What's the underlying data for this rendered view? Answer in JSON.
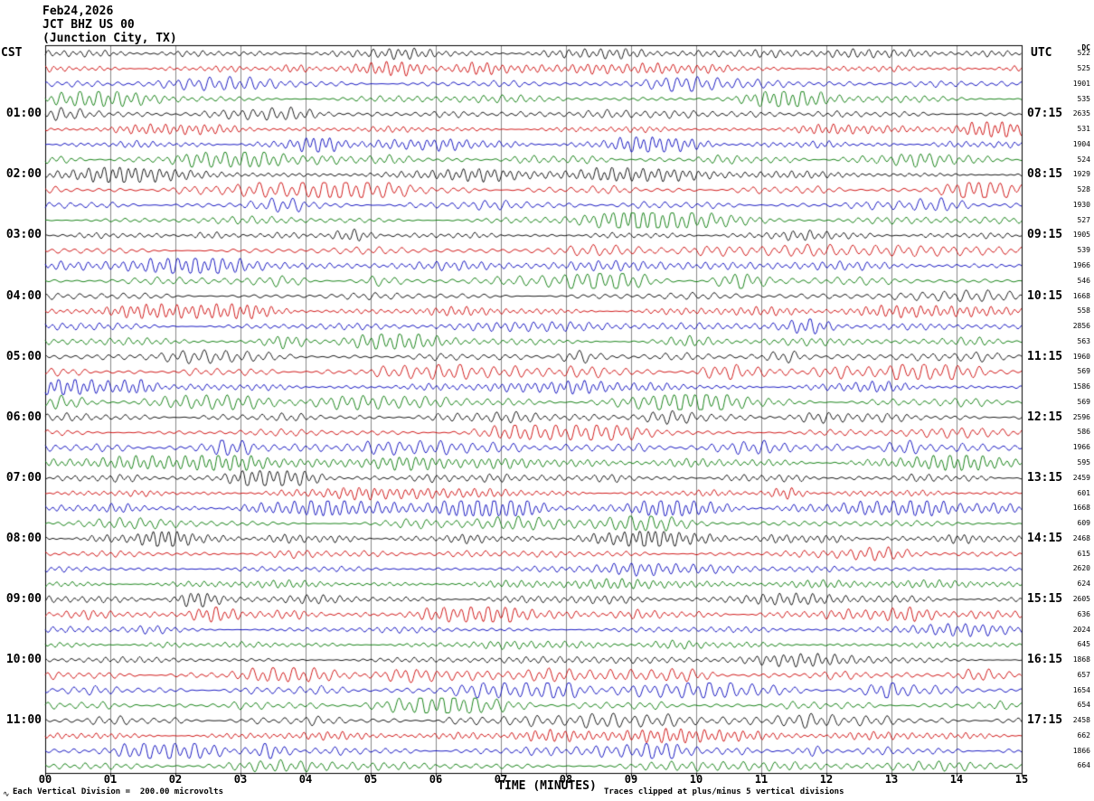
{
  "title": {
    "line1": "Feb24,2026",
    "line2": "JCT BHZ US 00",
    "line3": "(Junction City, TX)"
  },
  "left_axis": {
    "label": "CST",
    "times": [
      "01:00",
      "02:00",
      "03:00",
      "04:00",
      "05:00",
      "06:00",
      "07:00",
      "08:00",
      "09:00",
      "10:00",
      "11:00"
    ]
  },
  "right_axis": {
    "label": "UTC",
    "header": "DC",
    "times": [
      "07:15",
      "08:15",
      "09:15",
      "10:15",
      "11:15",
      "12:15",
      "13:15",
      "14:15",
      "15:15",
      "16:15",
      "17:15"
    ]
  },
  "trace_values": [
    "522",
    "525",
    "1901",
    "535",
    "2635",
    "531",
    "1904",
    "524",
    "1929",
    "528",
    "1930",
    "527",
    "1905",
    "539",
    "1966",
    "546",
    "1668",
    "558",
    "2856",
    "563",
    "1960",
    "569",
    "1586",
    "569",
    "2596",
    "586",
    "1966",
    "595",
    "2459",
    "601",
    "1668",
    "609",
    "2468",
    "615",
    "2620",
    "624",
    "2605",
    "636",
    "2024",
    "645",
    "1868",
    "657",
    "1654",
    "654",
    "2458",
    "662",
    "1866",
    "664"
  ],
  "x_axis": {
    "label": "TIME (MINUTES)",
    "ticks": [
      "00",
      "01",
      "02",
      "03",
      "04",
      "05",
      "06",
      "07",
      "08",
      "09",
      "10",
      "11",
      "12",
      "13",
      "14",
      "15"
    ]
  },
  "footer": {
    "left": "Each Vertical Division =  200.00 microvolts",
    "right": "Traces clipped at plus/minus 5 vertical divisions",
    "corner_mark": "∿"
  },
  "colors": {
    "trace_cycle": [
      "#000000",
      "#cc0000",
      "#0000bb",
      "#007700"
    ],
    "grid": "#8a8a8a",
    "border": "#000000"
  },
  "chart_data": {
    "type": "line",
    "variant": "helicorder-seismogram",
    "station": "JCT BHZ US 00",
    "location": "(Junction City, TX)",
    "date": "Feb24,2026",
    "xlabel": "TIME (MINUTES)",
    "x_ticks": [
      "00",
      "01",
      "02",
      "03",
      "04",
      "05",
      "06",
      "07",
      "08",
      "09",
      "10",
      "11",
      "12",
      "13",
      "14",
      "15"
    ],
    "x_range_minutes": [
      0,
      15
    ],
    "num_traces": 48,
    "traces_per_hour": 4,
    "minutes_per_trace": 15,
    "left_time_labels_cst": [
      "01:00",
      "02:00",
      "03:00",
      "04:00",
      "05:00",
      "06:00",
      "07:00",
      "08:00",
      "09:00",
      "10:00",
      "11:00"
    ],
    "right_time_labels_utc": [
      "07:15",
      "08:15",
      "09:15",
      "10:15",
      "11:15",
      "12:15",
      "13:15",
      "14:15",
      "15:15",
      "16:15",
      "17:15"
    ],
    "per_trace_dc_values": [
      "522",
      "525",
      "1901",
      "535",
      "2635",
      "531",
      "1904",
      "524",
      "1929",
      "528",
      "1930",
      "527",
      "1905",
      "539",
      "1966",
      "546",
      "1668",
      "558",
      "2856",
      "563",
      "1960",
      "569",
      "1586",
      "569",
      "2596",
      "586",
      "1966",
      "595",
      "2459",
      "601",
      "1668",
      "609",
      "2468",
      "615",
      "2620",
      "624",
      "2605",
      "636",
      "2024",
      "645",
      "1868",
      "657",
      "1654",
      "654",
      "2458",
      "662",
      "1866",
      "664"
    ],
    "amplitude_scale": "Each Vertical Division =  200.00 microvolts",
    "clipping": "Traces clipped at plus/minus 5 vertical divisions",
    "color_cycle": [
      "black",
      "red",
      "blue",
      "green"
    ],
    "legend": "none",
    "grid": "vertical lines every 1 minute"
  }
}
